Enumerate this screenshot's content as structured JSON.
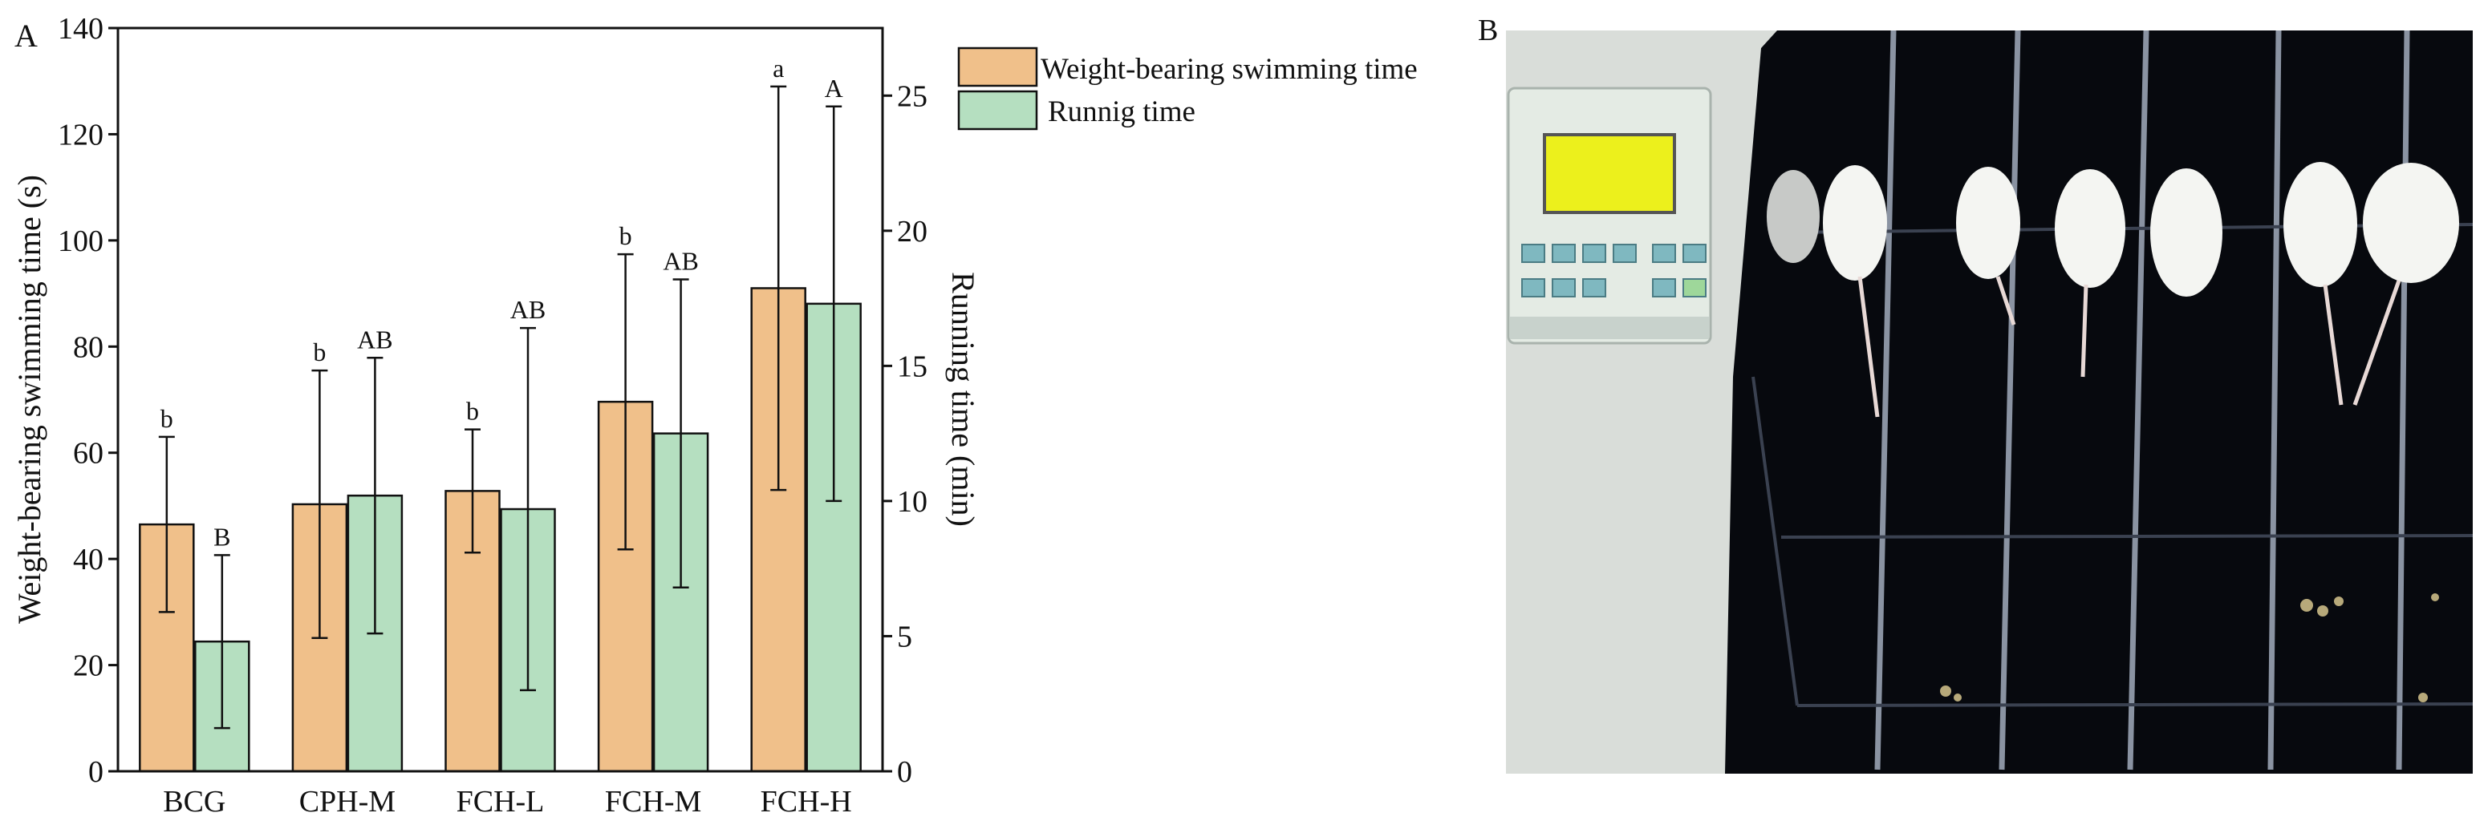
{
  "chart_data": {
    "type": "bar",
    "panel_label": "A",
    "categories": [
      "BCG",
      "CPH-M",
      "FCH-L",
      "FCH-M",
      "FCH-H"
    ],
    "ylabel": "Weight-bearing swimming time (s)",
    "y2label": "Running time (min)",
    "ylim": [
      0,
      140
    ],
    "yticks": [
      "0",
      "20",
      "40",
      "60",
      "80",
      "100",
      "120",
      "140"
    ],
    "y2lim": [
      0,
      27.5
    ],
    "y2ticks": [
      "0",
      "5",
      "10",
      "15",
      "20",
      "25"
    ],
    "legend_position": "top-right",
    "series": [
      {
        "name": "Weight-bearing swimming time",
        "axis": "left",
        "color": "#f0c08a",
        "values": [
          46.5,
          50.3,
          52.8,
          69.6,
          91.0
        ],
        "errors": [
          16.5,
          25.2,
          11.6,
          27.8,
          38.0
        ],
        "letters": [
          "b",
          "b",
          "b",
          "b",
          "a"
        ]
      },
      {
        "name": "Runnig time",
        "axis": "right",
        "color": "#b5dfc0",
        "values": [
          4.8,
          10.2,
          9.7,
          12.5,
          17.3
        ],
        "errors": [
          3.2,
          5.1,
          6.7,
          5.7,
          7.3
        ],
        "letters": [
          "B",
          "AB",
          "AB",
          "AB",
          "A"
        ]
      }
    ]
  },
  "photo": {
    "panel_label": "B",
    "colors": {
      "background": "#07090e",
      "machine_panel": "#e4ebe4",
      "lcd": "#ecf01c",
      "mouse": "#f4f5f2"
    }
  }
}
